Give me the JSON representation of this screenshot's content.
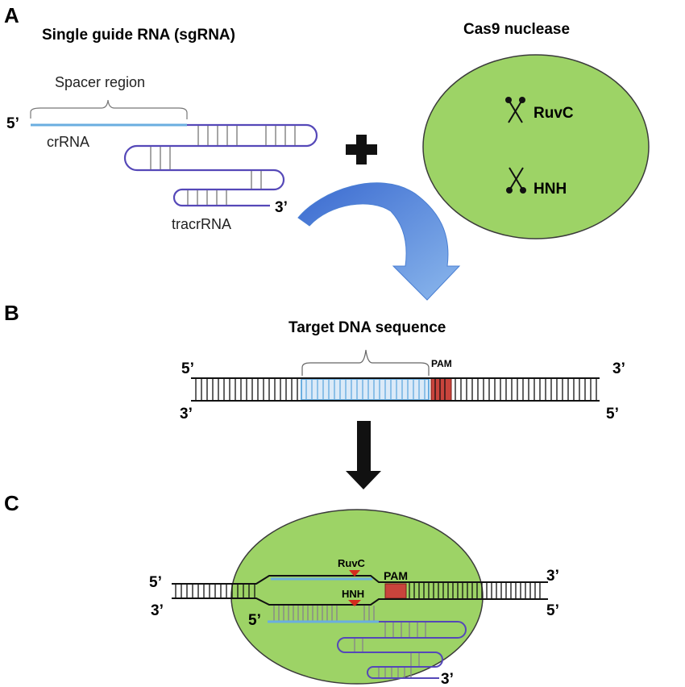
{
  "panels": {
    "a": "A",
    "b": "B",
    "c": "C"
  },
  "sgrna": {
    "title": "Single guide RNA (sgRNA)",
    "spacer_label": "Spacer region",
    "crrna_label": "crRNA",
    "tracrrna_label": "tracrRNA",
    "five_prime": "5’",
    "three_prime": "3’"
  },
  "cas9": {
    "title": "Cas9 nuclease",
    "domain_1": "RuvC",
    "domain_2": "HNH",
    "icon": "scissors-icon"
  },
  "target": {
    "title": "Target DNA sequence",
    "pam_label": "PAM",
    "top_left": "5’",
    "top_right": "3’",
    "bottom_left": "3’",
    "bottom_right": "5’"
  },
  "complex": {
    "cut_top": "RuvC",
    "cut_bottom": "HNH",
    "pam_label": "PAM",
    "top_left": "5’",
    "top_right": "3’",
    "bottom_left": "3’",
    "bottom_right": "5’",
    "rna_five_prime": "5’",
    "rna_three_prime": "3’"
  },
  "colors": {
    "cas9_fill": "#9dd366",
    "crrna": "#6aaee0",
    "tracrrna": "#5548b8",
    "pam": "#c9443c",
    "arrow_blue": "#4a7fd3",
    "cut_marker": "#d42b1e"
  }
}
